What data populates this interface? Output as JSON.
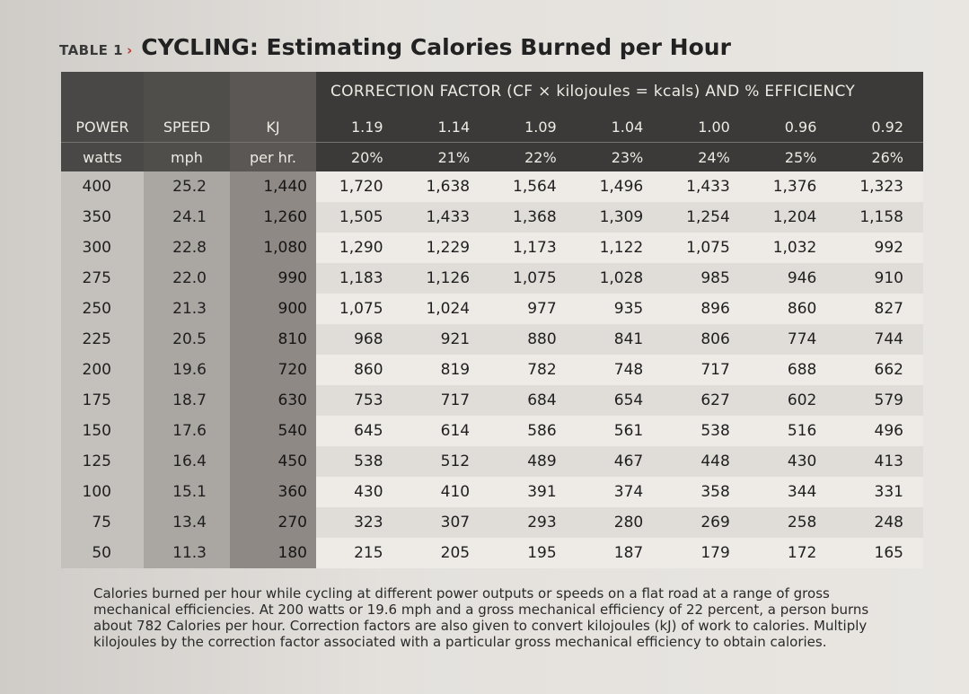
{
  "title": {
    "table_label": "TABLE 1",
    "arrow": "›",
    "text": "CYCLING: Estimating Calories Burned per Hour"
  },
  "header": {
    "cf_title": "CORRECTION FACTOR (CF × kilojoules = kcals) AND % EFFICIENCY",
    "col_labels": [
      {
        "top": "POWER",
        "bottom": "watts"
      },
      {
        "top": "SPEED",
        "bottom": "mph"
      },
      {
        "top": "KJ",
        "bottom": "per hr."
      }
    ],
    "factors": [
      "1.19",
      "1.14",
      "1.09",
      "1.04",
      "1.00",
      "0.96",
      "0.92"
    ],
    "efficiencies": [
      "20%",
      "21%",
      "22%",
      "23%",
      "24%",
      "25%",
      "26%"
    ]
  },
  "rows": [
    [
      "400",
      "25.2",
      "1,440",
      "1,720",
      "1,638",
      "1,564",
      "1,496",
      "1,433",
      "1,376",
      "1,323"
    ],
    [
      "350",
      "24.1",
      "1,260",
      "1,505",
      "1,433",
      "1,368",
      "1,309",
      "1,254",
      "1,204",
      "1,158"
    ],
    [
      "300",
      "22.8",
      "1,080",
      "1,290",
      "1,229",
      "1,173",
      "1,122",
      "1,075",
      "1,032",
      "992"
    ],
    [
      "275",
      "22.0",
      "990",
      "1,183",
      "1,126",
      "1,075",
      "1,028",
      "985",
      "946",
      "910"
    ],
    [
      "250",
      "21.3",
      "900",
      "1,075",
      "1,024",
      "977",
      "935",
      "896",
      "860",
      "827"
    ],
    [
      "225",
      "20.5",
      "810",
      "968",
      "921",
      "880",
      "841",
      "806",
      "774",
      "744"
    ],
    [
      "200",
      "19.6",
      "720",
      "860",
      "819",
      "782",
      "748",
      "717",
      "688",
      "662"
    ],
    [
      "175",
      "18.7",
      "630",
      "753",
      "717",
      "684",
      "654",
      "627",
      "602",
      "579"
    ],
    [
      "150",
      "17.6",
      "540",
      "645",
      "614",
      "586",
      "561",
      "538",
      "516",
      "496"
    ],
    [
      "125",
      "16.4",
      "450",
      "538",
      "512",
      "489",
      "467",
      "448",
      "430",
      "413"
    ],
    [
      "100",
      "15.1",
      "360",
      "430",
      "410",
      "391",
      "374",
      "358",
      "344",
      "331"
    ],
    [
      "75",
      "13.4",
      "270",
      "323",
      "307",
      "293",
      "280",
      "269",
      "258",
      "248"
    ],
    [
      "50",
      "11.3",
      "180",
      "215",
      "205",
      "195",
      "187",
      "179",
      "172",
      "165"
    ]
  ],
  "caption": "Calories burned per hour while cycling at different power outputs or speeds on a flat road at a range of gross mechanical efficiencies. At 200 watts or 19.6 mph and a gross mechanical efficiency of 22 percent, a person burns about 782 Calories per hour. Correction factors are also given to convert kilojoules (kJ) of work to calories. Multiply kilojoules by the correction factor associated with a particular gross mechanical efficiency to obtain calories.",
  "colors": {
    "header_dark": "#3b3a38",
    "accent_arrow": "#c0312b",
    "row_light": "#eeebe7",
    "row_alt": "#e0ddd9"
  }
}
